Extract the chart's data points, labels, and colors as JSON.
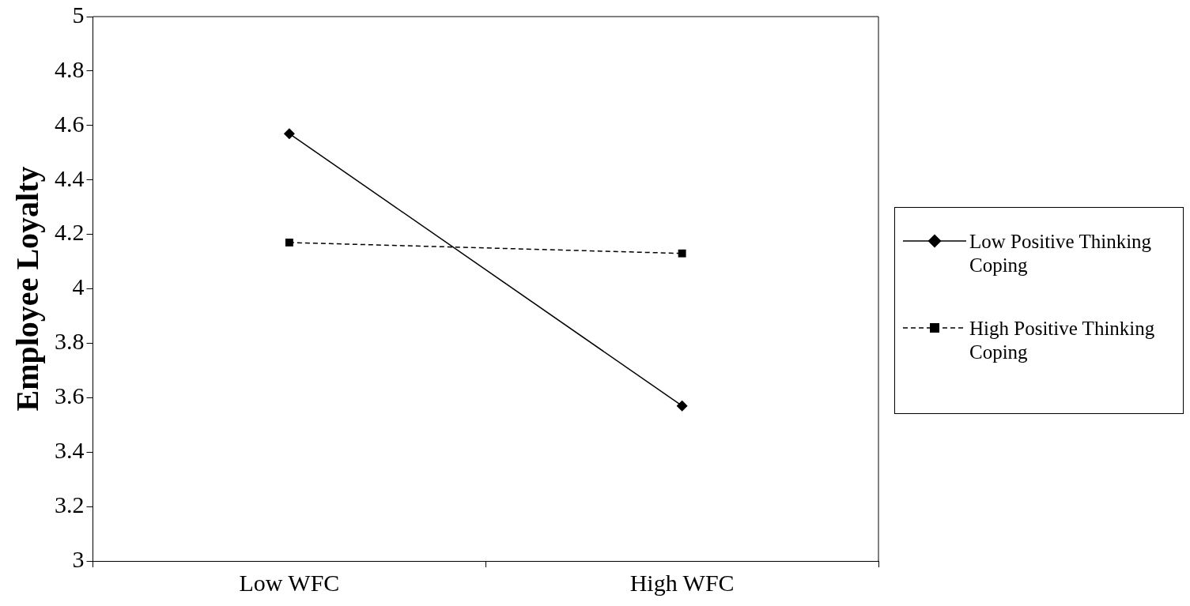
{
  "chart_data": {
    "type": "line",
    "ylabel": "Employee Loyalty",
    "categories": [
      "Low WFC",
      "High WFC"
    ],
    "series": [
      {
        "name": "Low Positive Thinking Coping",
        "color": "#000000",
        "values": [
          4.57,
          3.57
        ],
        "marker": "diamond",
        "line_style": "solid"
      },
      {
        "name": "High Positive Thinking Coping",
        "color": "#000000",
        "values": [
          4.17,
          4.13
        ],
        "marker": "square",
        "line_style": "dashed"
      }
    ],
    "ylim": [
      3,
      5
    ],
    "yticks": [
      3,
      3.2,
      3.4,
      3.6,
      3.8,
      4,
      4.2,
      4.4,
      4.6,
      4.8,
      5
    ],
    "grid": false,
    "legend": "right"
  }
}
